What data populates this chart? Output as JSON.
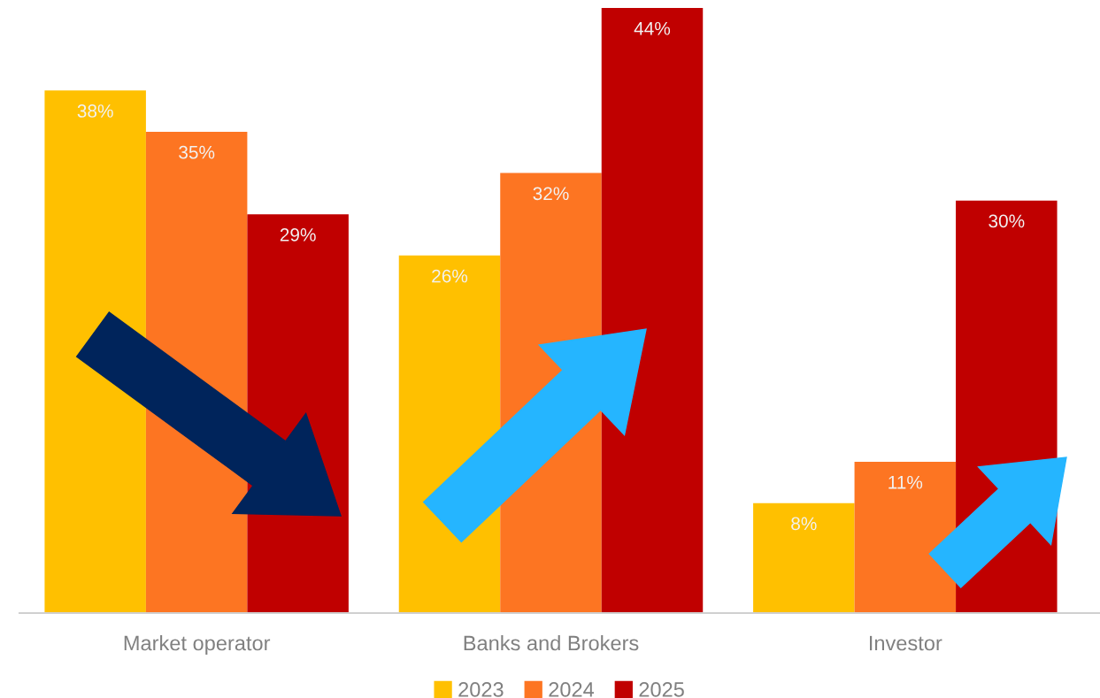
{
  "chart_data": {
    "type": "bar",
    "categories": [
      "Market operator",
      "Banks and Brokers",
      "Investor"
    ],
    "series": [
      {
        "name": "2023",
        "color": "#ffc000",
        "values": [
          38,
          26,
          8
        ],
        "value_labels": [
          "38%",
          "26%",
          "8%"
        ]
      },
      {
        "name": "2024",
        "color": "#fd7522",
        "values": [
          35,
          32,
          11
        ],
        "value_labels": [
          "35%",
          "32%",
          "11%"
        ]
      },
      {
        "name": "2025",
        "color": "#c00000",
        "values": [
          29,
          44,
          30
        ],
        "value_labels": [
          "29%",
          "44%",
          "30%"
        ]
      }
    ],
    "legend": "bottom"
  }
}
